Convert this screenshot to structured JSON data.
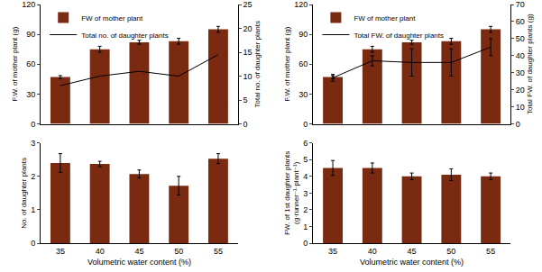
{
  "chart_data": [
    {
      "type": "bar",
      "categories": [
        "35",
        "40",
        "45",
        "50",
        "55"
      ],
      "tick_labels": "y",
      "y_label": "F.W. of mother plant (g)",
      "y2_label": "Total no. of daughter plants",
      "ylim": [
        0,
        120
      ],
      "yticks": [
        0,
        30,
        60,
        90,
        120
      ],
      "y2lim": [
        0,
        25
      ],
      "y2ticks": [
        0,
        5,
        10,
        15,
        20,
        25
      ],
      "legend": "top-left",
      "series": [
        {
          "name": "FW of mother plant",
          "type": "bar",
          "color": "#7b2a12",
          "values": [
            47,
            75,
            82,
            83,
            95
          ],
          "errors": [
            1.5,
            3,
            2,
            3,
            3
          ]
        },
        {
          "name": "Total no. of daughter plants",
          "type": "line",
          "axis": "y2",
          "color": "#000000",
          "values": [
            8,
            10,
            11,
            10,
            14.5
          ]
        }
      ]
    },
    {
      "type": "bar",
      "categories": [
        "35",
        "40",
        "45",
        "50",
        "55"
      ],
      "tick_labels": "y",
      "y_label": "F.W. of mother plant (g)",
      "y2_label": "Total FW. of daughter plants (g)",
      "ylim": [
        0,
        120
      ],
      "yticks": [
        0,
        30,
        60,
        90,
        120
      ],
      "y2lim": [
        0,
        70
      ],
      "y2ticks": [
        0,
        10,
        20,
        30,
        40,
        50,
        60,
        70
      ],
      "legend": "top-left",
      "series": [
        {
          "name": "FW of mother plant",
          "type": "bar",
          "color": "#7b2a12",
          "values": [
            47,
            75,
            82,
            83,
            95
          ],
          "errors": [
            1.5,
            3,
            2,
            3,
            3
          ]
        },
        {
          "name": "Total FW. of daughter plants",
          "type": "line",
          "axis": "y2",
          "color": "#000000",
          "values": [
            27,
            37,
            36,
            36,
            45
          ],
          "errors": [
            2,
            3,
            8,
            8,
            5
          ]
        }
      ]
    },
    {
      "type": "bar",
      "categories": [
        "35",
        "40",
        "45",
        "50",
        "55"
      ],
      "x_label": "Volumetric water content (%)",
      "y_label": "No. of daughter plants",
      "ylim": [
        0,
        3
      ],
      "yticks": [
        0,
        1,
        2,
        3
      ],
      "color": "#7b2a12",
      "values": [
        2.4,
        2.37,
        2.07,
        1.72,
        2.53
      ],
      "errors": [
        0.28,
        0.08,
        0.12,
        0.28,
        0.15
      ]
    },
    {
      "type": "bar",
      "categories": [
        "35",
        "40",
        "45",
        "50",
        "55"
      ],
      "x_label": "Volumetric water content (%)",
      "y_label": [
        "FW. of 1st daughter plants",
        "(g·runner⁻¹·plant⁻¹)"
      ],
      "ylim": [
        0,
        6
      ],
      "yticks": [
        0,
        1,
        2,
        3,
        4,
        5,
        6
      ],
      "color": "#7b2a12",
      "values": [
        4.5,
        4.5,
        4.0,
        4.1,
        4.0
      ],
      "errors": [
        0.45,
        0.3,
        0.2,
        0.35,
        0.2
      ]
    }
  ]
}
